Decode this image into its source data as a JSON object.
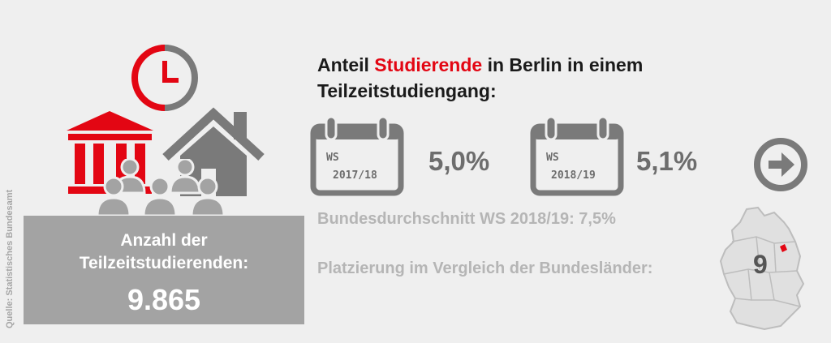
{
  "source": "Quelle: Statistisches Bundesamt",
  "headline": {
    "part1": "Anteil ",
    "highlight": "Studierende",
    "part2": " in Berlin in einem",
    "line2": "Teilzeitstudiengang:"
  },
  "count": {
    "line1": "Anzahl der",
    "line2": "Teilzeitstudierenden:",
    "value": "9.865"
  },
  "semesters": [
    {
      "ws": "WS",
      "year": "2017/18",
      "percent": "5,0%"
    },
    {
      "ws": "WS",
      "year": "2018/19",
      "percent": "5,1%"
    }
  ],
  "national_average": "Bundesdurchschnitt WS 2018/19: 7,5%",
  "placement": {
    "label": "Platzierung im Vergleich der Bundesländer:",
    "rank": "9"
  },
  "icons": [
    "clock-icon",
    "university-building-icon",
    "house-icon",
    "people-group-icon",
    "calendar-icon",
    "arrow-right-circle-icon",
    "germany-map-icon"
  ],
  "colors": {
    "accent": "#e30613",
    "gray": "#7a7a7a",
    "box": "#a3a3a3",
    "background": "#efefef"
  }
}
